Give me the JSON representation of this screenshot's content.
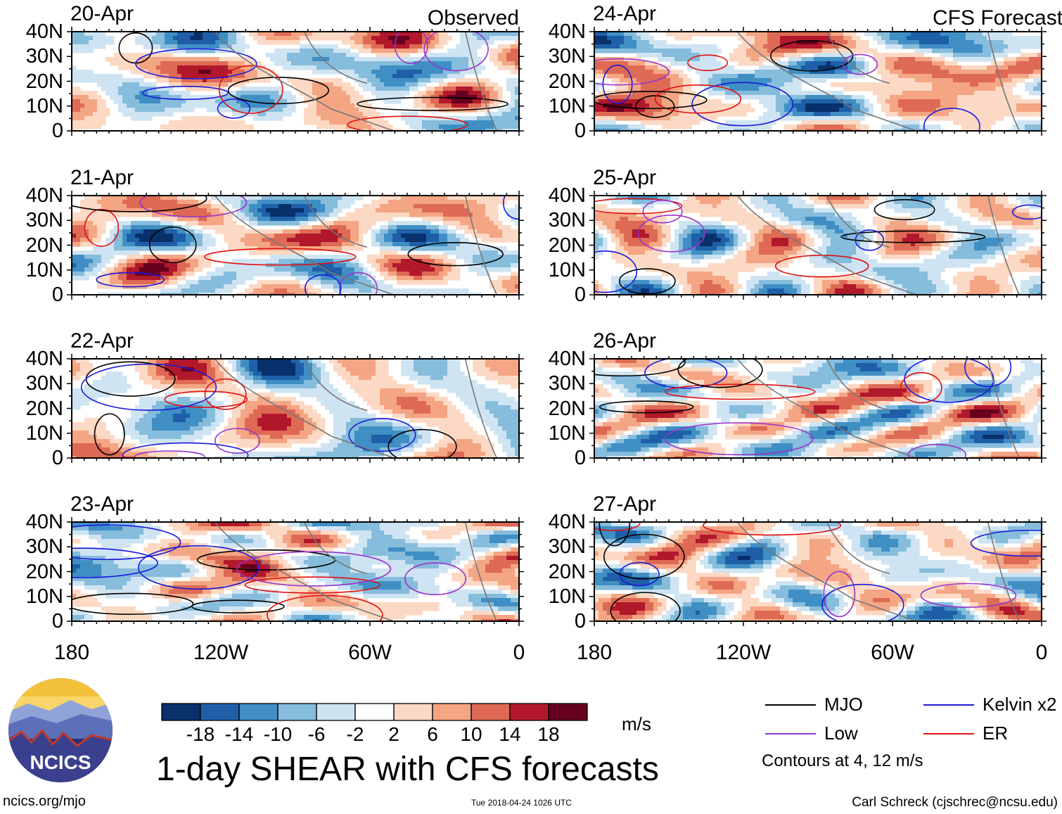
{
  "chart_data": {
    "type": "heatmap",
    "title": "1-day SHEAR with CFS forecasts",
    "colorbar": {
      "units": "m/s",
      "tick_labels": [
        "-18",
        "-14",
        "-10",
        "-6",
        "-2",
        "2",
        "6",
        "10",
        "14",
        "18"
      ],
      "colors": [
        "#08306b",
        "#1f5fa8",
        "#3f8fc4",
        "#86bcdc",
        "#cfe4f2",
        "#ffffff",
        "#fcd9c4",
        "#f4a584",
        "#de6a55",
        "#b2182b",
        "#67001f"
      ]
    },
    "x_ticks": [
      "180",
      "120W",
      "60W",
      "0"
    ],
    "y_ticks": [
      "40N",
      "30N",
      "20N",
      "10N",
      "0"
    ],
    "panels": [
      {
        "date": "20-Apr",
        "tag": "Observed",
        "seed": 11
      },
      {
        "date": "21-Apr",
        "tag": "",
        "seed": 23
      },
      {
        "date": "22-Apr",
        "tag": "",
        "seed": 37
      },
      {
        "date": "23-Apr",
        "tag": "",
        "seed": 41
      },
      {
        "date": "24-Apr",
        "tag": "CFS Forecast",
        "seed": 53
      },
      {
        "date": "25-Apr",
        "tag": "",
        "seed": 67
      },
      {
        "date": "26-Apr",
        "tag": "",
        "seed": 71
      },
      {
        "date": "27-Apr",
        "tag": "",
        "seed": 83
      }
    ],
    "legend": [
      {
        "label": "MJO",
        "color": "#000000"
      },
      {
        "label": "Kelvin x2",
        "color": "#1a1adb"
      },
      {
        "label": "Low",
        "color": "#9933cc"
      },
      {
        "label": "ER",
        "color": "#e01010"
      }
    ],
    "contour_note": "Contours at 4, 12 m/s"
  },
  "logo": {
    "text": "NCICS"
  },
  "footer": {
    "url": "ncics.org/mjo",
    "timestamp": "Tue 2018-04-24 1026 UTC",
    "credit": "Carl Schreck (cjschrec@ncsu.edu)"
  }
}
